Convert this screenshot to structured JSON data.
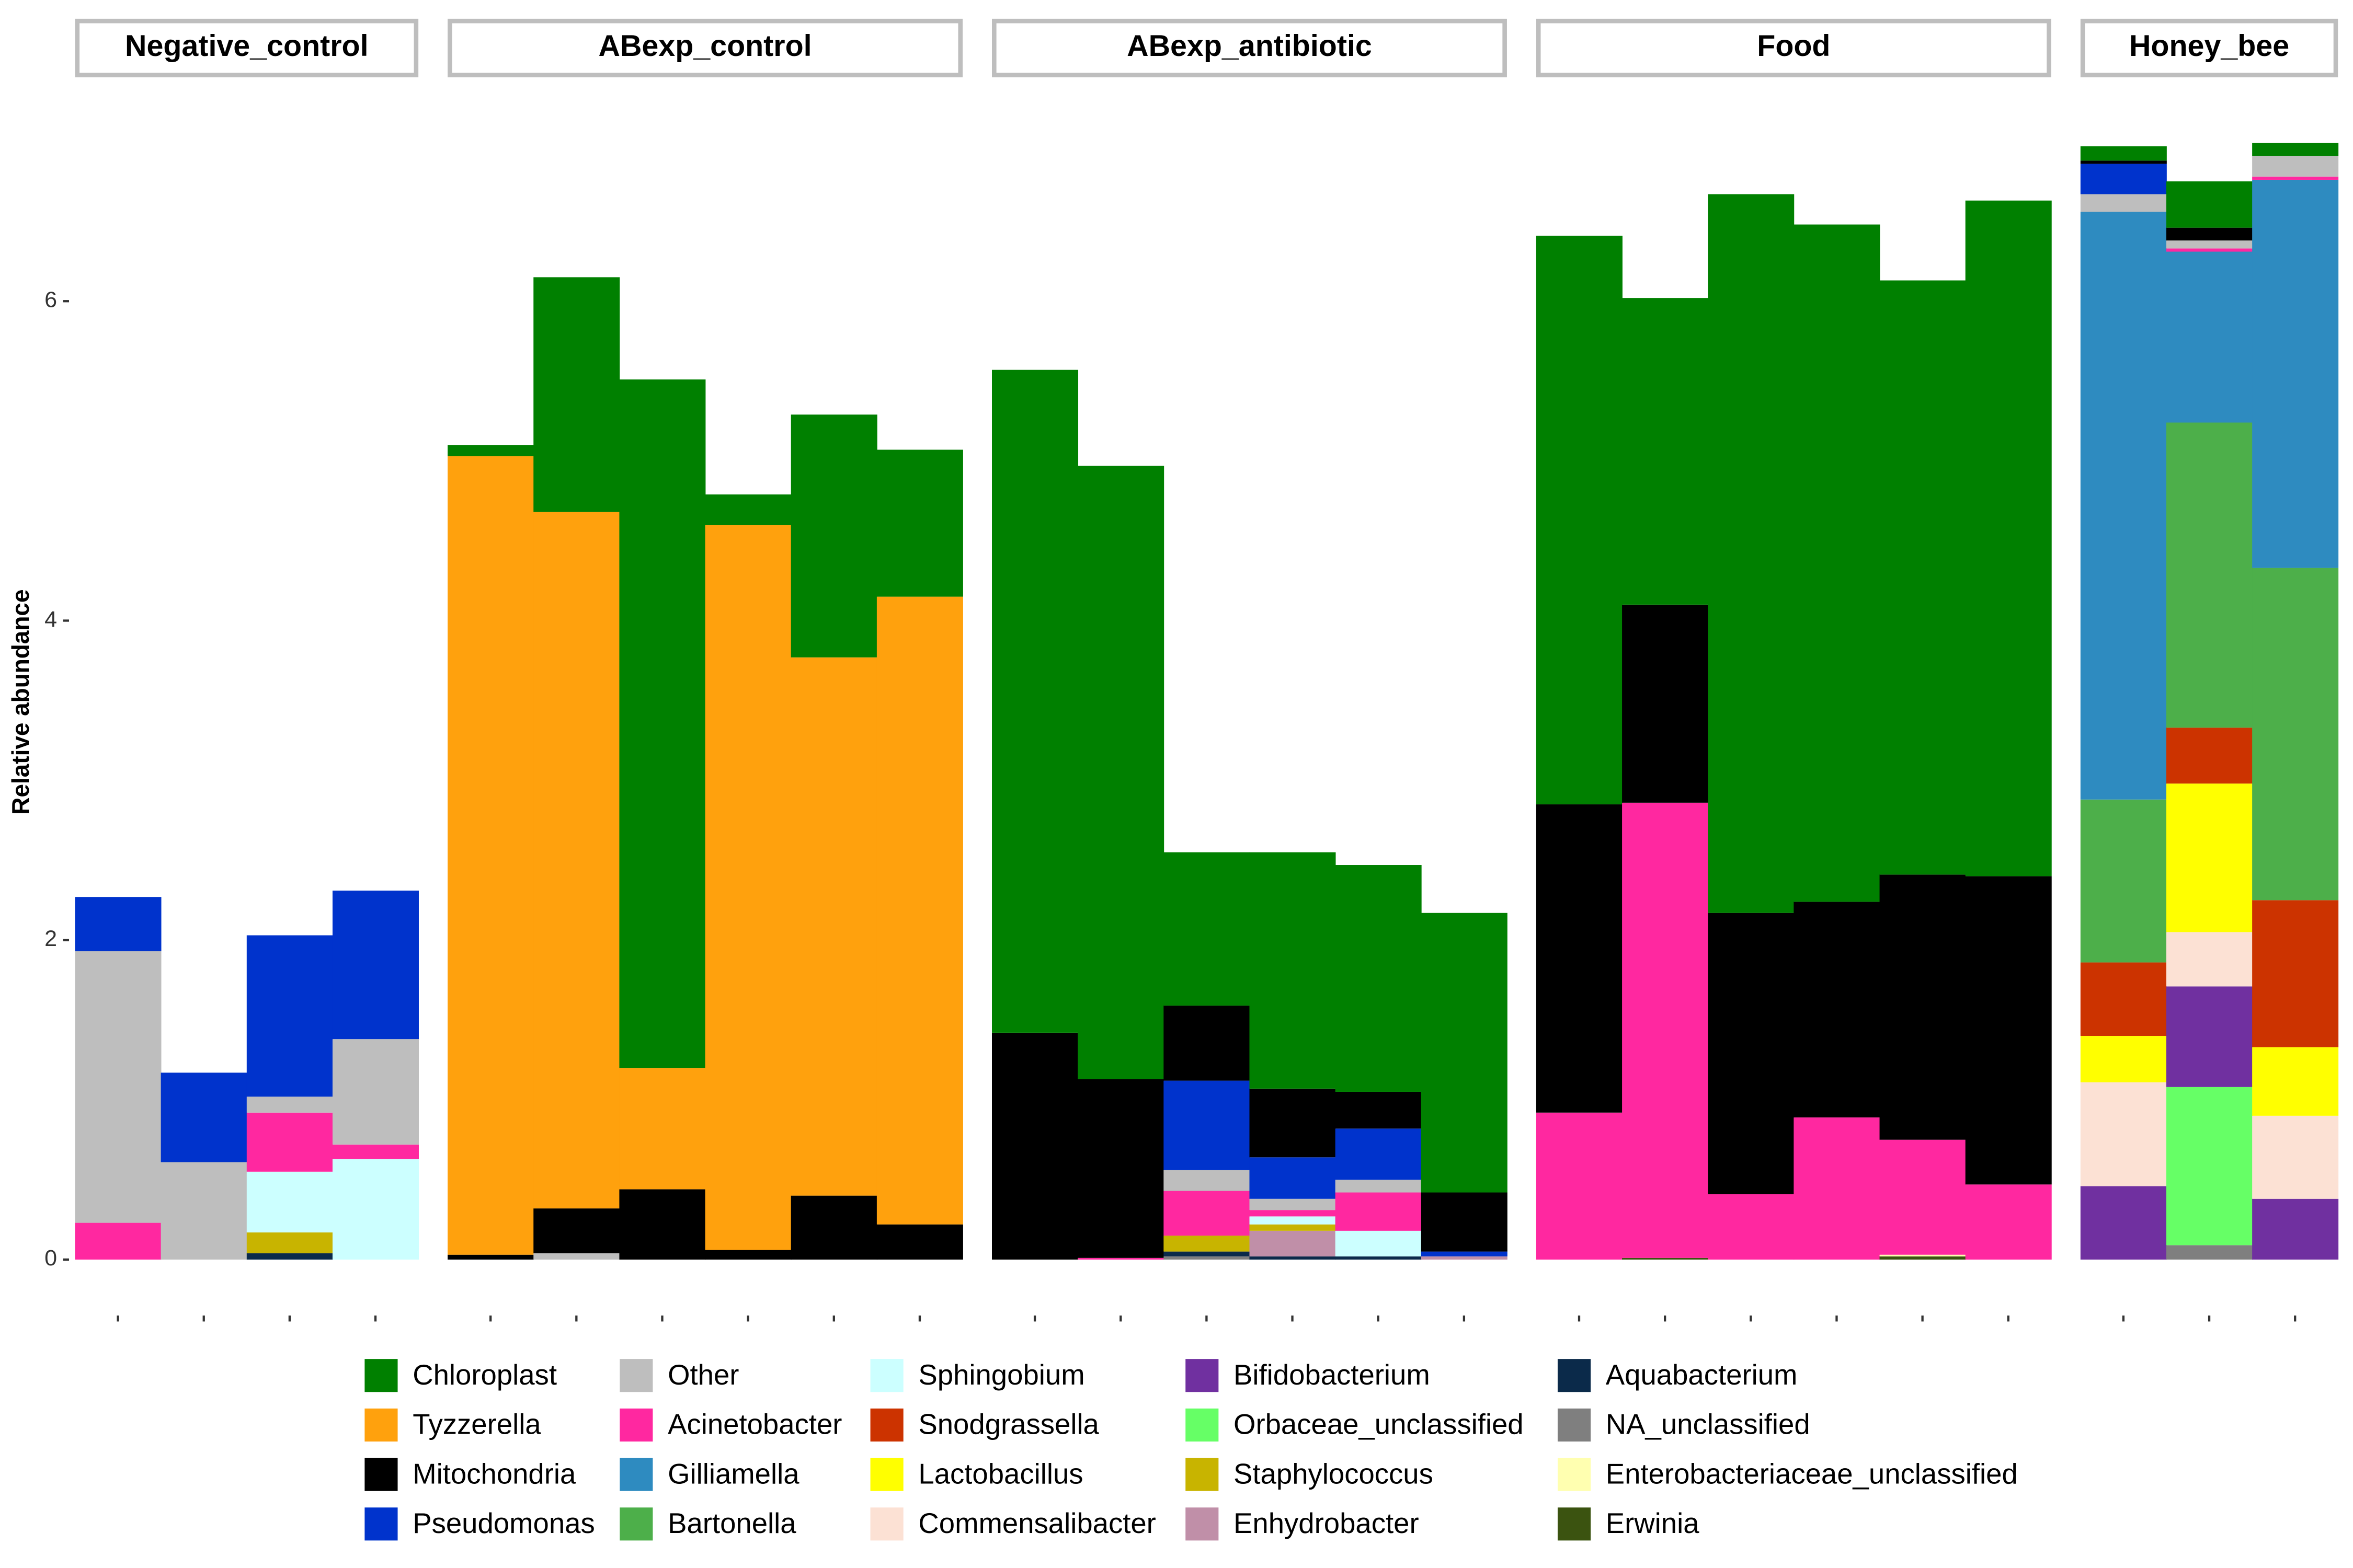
{
  "chart_data": {
    "type": "bar",
    "stacked": true,
    "y_label": "Relative abundance",
    "ylim": [
      -0.2,
      7.2
    ],
    "yticks": [
      0,
      2,
      4,
      6
    ],
    "facets": [
      {
        "title": "Negative_control",
        "categories": [
          null,
          null,
          null,
          null
        ]
      },
      {
        "title": "ABexp_control",
        "categories": [
          null,
          null,
          null,
          null,
          null,
          null
        ]
      },
      {
        "title": "ABexp_antibiotic",
        "categories": [
          null,
          null,
          null,
          null,
          null,
          null
        ]
      },
      {
        "title": "Food",
        "categories": [
          null,
          null,
          null,
          null,
          null,
          null
        ]
      },
      {
        "title": "Honey_bee",
        "categories": [
          null,
          null,
          null
        ]
      }
    ],
    "series": [
      {
        "name": "Chloroplast",
        "color": "#008000",
        "values": [
          0,
          0,
          0,
          0,
          0.07,
          1.47,
          4.31,
          0.19,
          1.52,
          0.92,
          4.15,
          3.84,
          0.96,
          1.48,
          1.42,
          1.75,
          3.56,
          1.92,
          4.5,
          4.24,
          3.72,
          4.23,
          0.09,
          0.29,
          0.08
        ]
      },
      {
        "name": "Tyzzerella",
        "color": "#FFA10D",
        "values": [
          0,
          0,
          0,
          0,
          5.0,
          4.36,
          0.76,
          4.54,
          3.37,
          3.93,
          0,
          0,
          0,
          0,
          0,
          0,
          0,
          0,
          0,
          0,
          0,
          0,
          0,
          0,
          0
        ]
      },
      {
        "name": "Mitochondria",
        "color": "#000000",
        "values": [
          0,
          0,
          0,
          0,
          0.03,
          0.28,
          0.44,
          0.06,
          0.4,
          0.22,
          1.42,
          1.12,
          0.47,
          0.43,
          0.23,
          0.37,
          1.93,
          1.24,
          1.76,
          1.35,
          1.66,
          1.93,
          0.02,
          0.08,
          0
        ]
      },
      {
        "name": "Pseudomonas",
        "color": "#0033CC",
        "values": [
          0.34,
          0.56,
          1.01,
          0.93,
          0,
          0,
          0,
          0,
          0,
          0,
          0,
          0,
          0.56,
          0.26,
          0.32,
          0.03,
          0,
          0,
          0,
          0,
          0,
          0,
          0.19,
          0,
          0
        ]
      },
      {
        "name": "Other",
        "color": "#BEBEBE",
        "values": [
          1.7,
          0.61,
          0.1,
          0.66,
          0,
          0.04,
          0,
          0,
          0,
          0,
          0,
          0,
          0.13,
          0.07,
          0.08,
          0,
          0,
          0,
          0,
          0,
          0,
          0,
          0.11,
          0.05,
          0.13
        ]
      },
      {
        "name": "Acinetobacter",
        "color": "#FF28A0",
        "values": [
          0.23,
          0,
          0.37,
          0.09,
          0,
          0,
          0,
          0,
          0,
          0,
          0,
          0.01,
          0.28,
          0.04,
          0.24,
          0,
          0.92,
          2.85,
          0.41,
          0.89,
          0.72,
          0.47,
          0,
          0.02,
          0.02
        ]
      },
      {
        "name": "Gilliamella",
        "color": "#2E8BC0",
        "values": [
          0,
          0,
          0,
          0,
          0,
          0,
          0,
          0,
          0,
          0,
          0,
          0,
          0,
          0,
          0,
          0,
          0,
          0,
          0,
          0,
          0,
          0,
          3.68,
          1.07,
          2.43
        ]
      },
      {
        "name": "Bartonella",
        "color": "#4DAF4A",
        "values": [
          0,
          0,
          0,
          0,
          0,
          0,
          0,
          0,
          0,
          0,
          0,
          0,
          0,
          0,
          0,
          0,
          0,
          0,
          0,
          0,
          0,
          0,
          1.02,
          1.91,
          2.08
        ]
      },
      {
        "name": "Sphingobium",
        "color": "#CCFFFF",
        "values": [
          0,
          0,
          0.38,
          0.63,
          0,
          0,
          0,
          0,
          0,
          0,
          0,
          0,
          0,
          0.05,
          0.16,
          0,
          0,
          0,
          0,
          0,
          0,
          0,
          0,
          0,
          0
        ]
      },
      {
        "name": "Snodgrassella",
        "color": "#CC3300",
        "values": [
          0,
          0,
          0,
          0,
          0,
          0,
          0,
          0,
          0,
          0,
          0,
          0,
          0,
          0,
          0,
          0,
          0,
          0,
          0,
          0,
          0,
          0,
          0.46,
          0.35,
          0.92
        ]
      },
      {
        "name": "Lactobacillus",
        "color": "#FFFF00",
        "values": [
          0,
          0,
          0,
          0,
          0,
          0,
          0,
          0,
          0,
          0,
          0,
          0,
          0,
          0,
          0,
          0,
          0,
          0,
          0,
          0,
          0,
          0,
          0.29,
          0.93,
          0.43
        ]
      },
      {
        "name": "Commensalibacter",
        "color": "#FCE1D4",
        "values": [
          0,
          0,
          0,
          0,
          0,
          0,
          0,
          0,
          0,
          0,
          0,
          0,
          0,
          0,
          0,
          0,
          0,
          0,
          0,
          0,
          0,
          0,
          0.65,
          0.34,
          0.52
        ]
      },
      {
        "name": "Bifidobacterium",
        "color": "#7030A0",
        "values": [
          0,
          0,
          0,
          0,
          0,
          0,
          0,
          0,
          0,
          0,
          0,
          0,
          0,
          0,
          0,
          0,
          0,
          0,
          0,
          0,
          0,
          0,
          0.46,
          0.63,
          0.38
        ]
      },
      {
        "name": "Orbaceae_unclassified",
        "color": "#66FF66",
        "values": [
          0,
          0,
          0,
          0,
          0,
          0,
          0,
          0,
          0,
          0,
          0,
          0,
          0,
          0,
          0,
          0,
          0,
          0,
          0,
          0,
          0,
          0,
          0,
          0.99,
          0
        ]
      },
      {
        "name": "Staphylococcus",
        "color": "#C8B400",
        "values": [
          0,
          0,
          0.13,
          0,
          0,
          0,
          0,
          0,
          0,
          0,
          0,
          0,
          0.1,
          0.04,
          0,
          0,
          0,
          0,
          0,
          0,
          0,
          0,
          0,
          0,
          0
        ]
      },
      {
        "name": "Enhydrobacter",
        "color": "#C08FA8",
        "values": [
          0,
          0,
          0,
          0,
          0,
          0,
          0,
          0,
          0,
          0,
          0,
          0,
          0,
          0.16,
          0,
          0.02,
          0,
          0,
          0,
          0,
          0,
          0,
          0,
          0,
          0
        ]
      },
      {
        "name": "Aquabacterium",
        "color": "#0B2A4A",
        "values": [
          0,
          0,
          0.04,
          0,
          0,
          0,
          0,
          0,
          0,
          0,
          0,
          0,
          0.03,
          0.02,
          0.02,
          0,
          0,
          0,
          0,
          0,
          0,
          0,
          0,
          0,
          0
        ]
      },
      {
        "name": "NA_unclassified",
        "color": "#7F7F7F",
        "values": [
          0,
          0,
          0,
          0,
          0,
          0,
          0,
          0,
          0,
          0,
          0,
          0,
          0.02,
          0,
          0,
          0,
          0,
          0,
          0,
          0,
          0,
          0,
          0,
          0.09,
          0
        ]
      },
      {
        "name": "Enterobacteriaceae_unclassified",
        "color": "#FFFFB0",
        "values": [
          0,
          0,
          0,
          0,
          0,
          0,
          0,
          0,
          0,
          0,
          0,
          0,
          0,
          0,
          0,
          0,
          0,
          0,
          0,
          0,
          0.01,
          0,
          0,
          0,
          0
        ]
      },
      {
        "name": "Erwinia",
        "color": "#3B5310",
        "values": [
          0,
          0,
          0,
          0,
          0,
          0,
          0,
          0,
          0,
          0,
          0,
          0,
          0,
          0,
          0,
          0,
          0,
          0.01,
          0,
          0,
          0.02,
          0,
          0,
          0,
          0
        ]
      }
    ]
  }
}
